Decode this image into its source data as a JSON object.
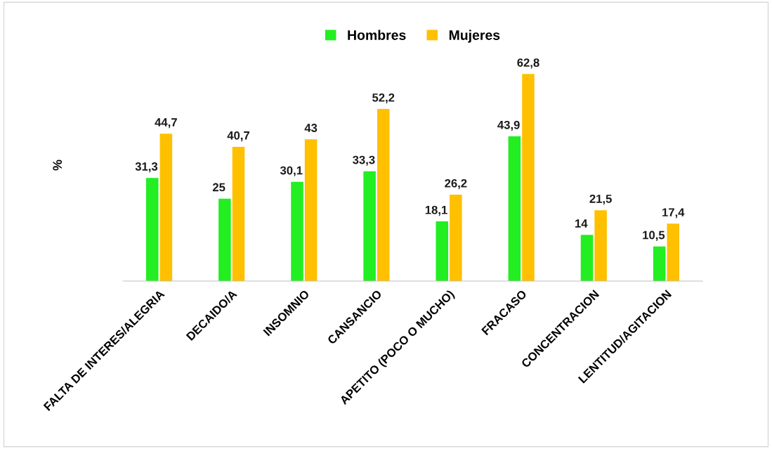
{
  "chart_data": {
    "type": "bar",
    "ylabel": "%",
    "categories": [
      "FALTA DE INTERES/ALEGRIA",
      "DECAIDO/A",
      "INSOMNIO",
      "CANSANCIO",
      "APETITO (POCO O MUCHO)",
      "FRACASO",
      "CONCENTRACION",
      "LENTITUD/AGITACION"
    ],
    "series": [
      {
        "name": "Hombres",
        "color": "#22ee22",
        "values": [
          31.3,
          25,
          30.1,
          33.3,
          18.1,
          43.9,
          14,
          10.5
        ],
        "value_labels": [
          "31,3",
          "25",
          "30,1",
          "33,3",
          "18,1",
          "43,9",
          "14",
          "10,5"
        ]
      },
      {
        "name": "Mujeres",
        "color": "#ffc000",
        "values": [
          44.7,
          40.7,
          43,
          52.2,
          26.2,
          62.8,
          21.5,
          17.4
        ],
        "value_labels": [
          "44,7",
          "40,7",
          "43",
          "52,2",
          "26,2",
          "62,8",
          "21,5",
          "17,4"
        ]
      }
    ],
    "legend": "top",
    "grid": false
  }
}
